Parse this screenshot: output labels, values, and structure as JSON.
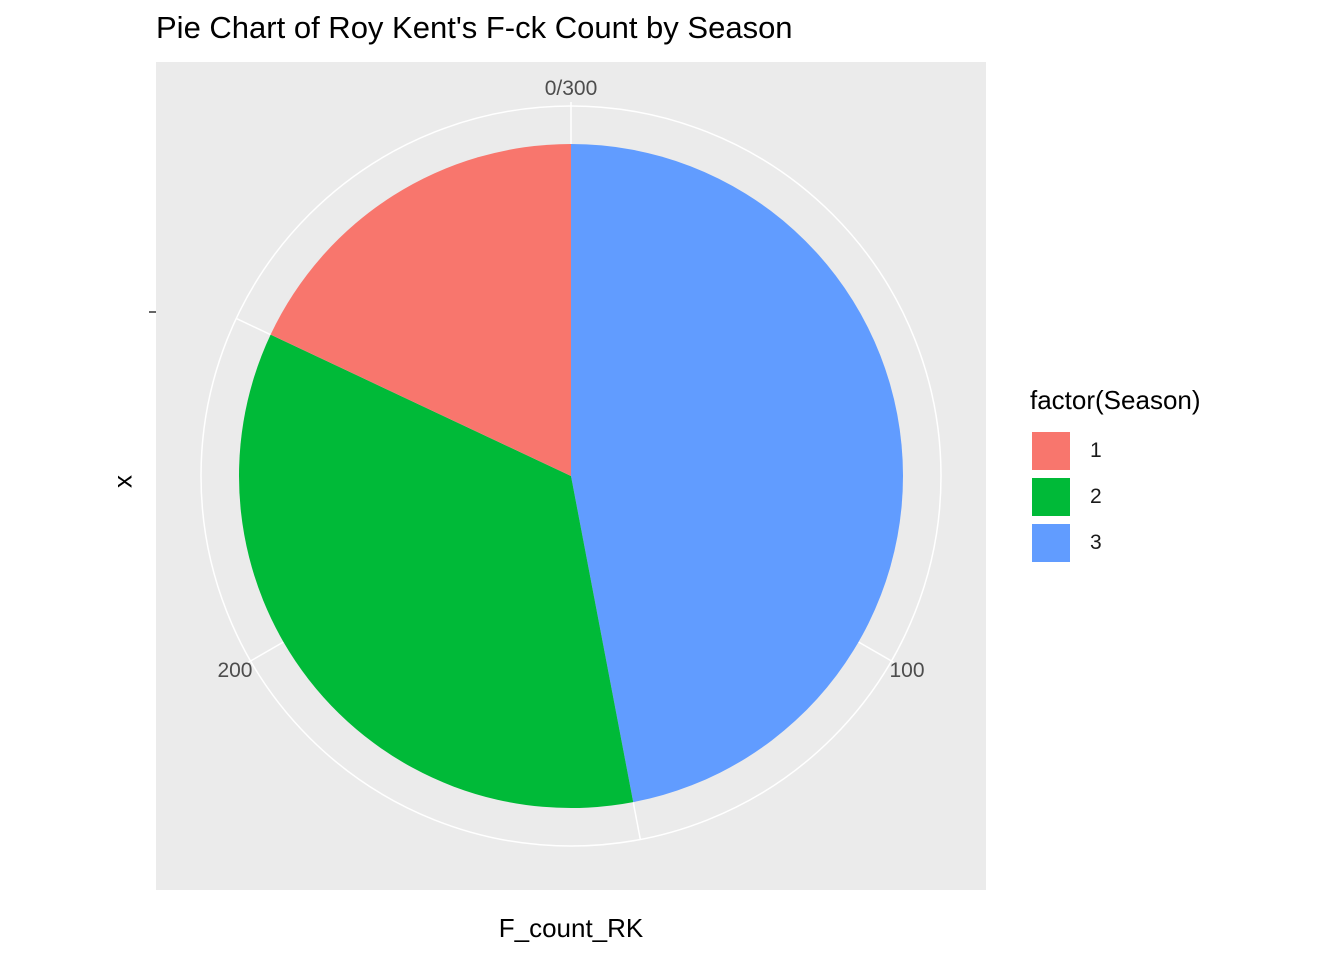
{
  "chart_data": {
    "type": "pie",
    "title": "Pie Chart of Roy Kent's F-ck Count by Season",
    "xlabel": "F_count_RK",
    "ylabel": "x",
    "legend_title": "factor(Season)",
    "legend_placement": "right",
    "theta_ticks": [
      {
        "value": 0,
        "label": "0/300"
      },
      {
        "value": 100,
        "label": "100"
      },
      {
        "value": 200,
        "label": "200"
      }
    ],
    "total": 300,
    "slices": [
      {
        "label": "3",
        "value": 141,
        "color": "#619CFF"
      },
      {
        "label": "2",
        "value": 105,
        "color": "#00BA38"
      },
      {
        "label": "1",
        "value": 54,
        "color": "#F8766D"
      }
    ],
    "legend": [
      {
        "label": "1",
        "color": "#F8766D"
      },
      {
        "label": "2",
        "color": "#00BA38"
      },
      {
        "label": "3",
        "color": "#619CFF"
      }
    ],
    "panel_background": "#EBEBEB",
    "grid": true
  }
}
